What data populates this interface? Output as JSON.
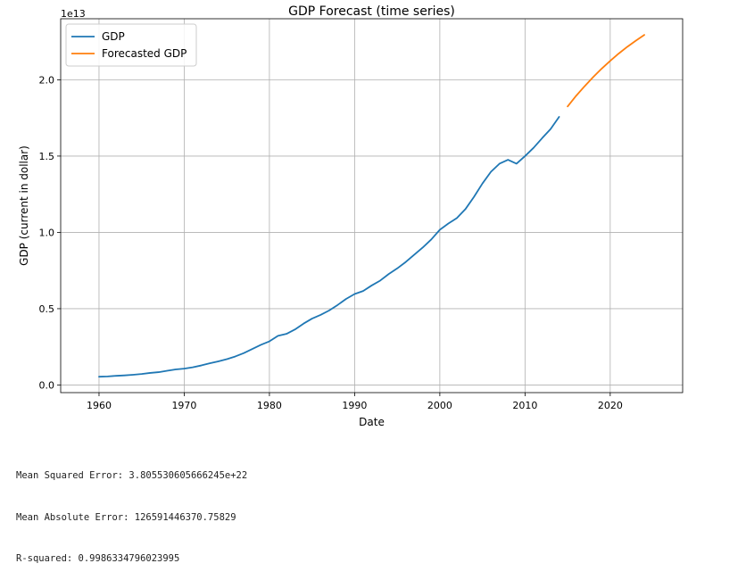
{
  "chart_data": {
    "type": "line",
    "title": "GDP Forecast (time series)",
    "xlabel": "Date",
    "ylabel": "GDP (current in dollar)",
    "y_offset_label": "1e13",
    "xlim": [
      1955.5,
      2028.5
    ],
    "ylim": [
      -0.05,
      2.4
    ],
    "y_unit_multiplier": "1e13",
    "x_ticks": [
      1960,
      1970,
      1980,
      1990,
      2000,
      2010,
      2020
    ],
    "y_ticks": [
      0.0,
      0.5,
      1.0,
      1.5,
      2.0
    ],
    "y_tick_labels": [
      "0.0",
      "0.5",
      "1.0",
      "1.5",
      "2.0"
    ],
    "grid": true,
    "legend_position": "upper-left",
    "series": [
      {
        "name": "GDP",
        "color": "#1f77b4",
        "x": [
          1960,
          1961,
          1962,
          1963,
          1964,
          1965,
          1966,
          1967,
          1968,
          1969,
          1970,
          1971,
          1972,
          1973,
          1974,
          1975,
          1976,
          1977,
          1978,
          1979,
          1980,
          1981,
          1982,
          1983,
          1984,
          1985,
          1986,
          1987,
          1988,
          1989,
          1990,
          1991,
          1992,
          1993,
          1994,
          1995,
          1996,
          1997,
          1998,
          1999,
          2000,
          2001,
          2002,
          2003,
          2004,
          2005,
          2006,
          2007,
          2008,
          2009,
          2010,
          2011,
          2012,
          2013,
          2014
        ],
        "values": [
          0.054,
          0.056,
          0.06,
          0.063,
          0.067,
          0.072,
          0.079,
          0.084,
          0.093,
          0.102,
          0.107,
          0.116,
          0.128,
          0.142,
          0.155,
          0.169,
          0.187,
          0.209,
          0.236,
          0.263,
          0.286,
          0.322,
          0.335,
          0.364,
          0.402,
          0.435,
          0.459,
          0.488,
          0.524,
          0.564,
          0.596,
          0.616,
          0.652,
          0.684,
          0.727,
          0.764,
          0.806,
          0.854,
          0.901,
          0.954,
          1.017,
          1.058,
          1.094,
          1.152,
          1.232,
          1.32,
          1.397,
          1.45,
          1.476,
          1.45,
          1.5,
          1.554,
          1.617,
          1.677,
          1.757
        ]
      },
      {
        "name": "Forecasted GDP",
        "color": "#ff7f0e",
        "x": [
          2015,
          2016,
          2017,
          2018,
          2019,
          2020,
          2021,
          2022,
          2023,
          2024
        ],
        "values": [
          1.825,
          1.895,
          1.958,
          2.018,
          2.073,
          2.124,
          2.172,
          2.216,
          2.256,
          2.294
        ]
      }
    ]
  },
  "metrics": [
    "Mean Squared Error: 3.805530605666245e+22",
    "Mean Absolute Error: 126591446370.75829",
    "R-squared: 0.9986334796023995"
  ]
}
